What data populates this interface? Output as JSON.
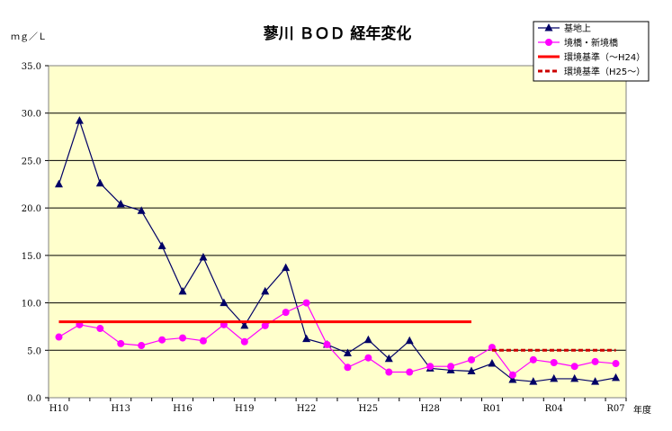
{
  "chart_data": {
    "type": "line",
    "title": "蓼川 ＢＯＤ 経年変化",
    "ylabel": "ｍｇ／Ｌ",
    "xlabel": "年度",
    "ylim": [
      0,
      35
    ],
    "yticks": [
      "0.0",
      "5.0",
      "10.0",
      "15.0",
      "20.0",
      "25.0",
      "30.0",
      "35.0"
    ],
    "xtick_labels": [
      "H10",
      "H13",
      "H16",
      "H19",
      "H22",
      "H25",
      "H28",
      "R01",
      "R04",
      "R07"
    ],
    "categories": [
      "H10",
      "H11",
      "H12",
      "H13",
      "H14",
      "H15",
      "H16",
      "H17",
      "H18",
      "H19",
      "H20",
      "H21",
      "H22",
      "H23",
      "H24",
      "H25",
      "H26",
      "H27",
      "H28",
      "H29",
      "H30",
      "R01",
      "R02",
      "R03",
      "R04",
      "R05",
      "R06",
      "R07"
    ],
    "grid": true,
    "legend_position": "top-right",
    "series": [
      {
        "name": "基地上",
        "color": "#000066",
        "marker": "triangle",
        "values": [
          22.5,
          29.2,
          22.6,
          20.4,
          19.7,
          16.0,
          11.2,
          14.8,
          10.0,
          7.6,
          11.2,
          13.7,
          6.2,
          5.6,
          4.7,
          6.1,
          4.1,
          6.0,
          3.1,
          2.9,
          2.8,
          3.6,
          1.9,
          1.7,
          2.0,
          2.0,
          1.7,
          2.1
        ]
      },
      {
        "name": "境橋・新境橋",
        "color": "#FF00FF",
        "marker": "circle",
        "values": [
          6.4,
          7.7,
          7.3,
          5.7,
          5.5,
          6.1,
          6.3,
          6.0,
          7.7,
          5.9,
          7.6,
          9.0,
          10.0,
          5.6,
          3.2,
          4.2,
          2.7,
          2.7,
          3.3,
          3.3,
          4.0,
          5.3,
          2.4,
          4.0,
          3.7,
          3.3,
          3.8,
          3.6
        ]
      },
      {
        "name": "環境基準（～H24）",
        "color": "#FF0000",
        "style": "solid",
        "value": 8,
        "range": [
          "H10",
          "H30"
        ]
      },
      {
        "name": "環境基準（H25～）",
        "color": "#CC0000",
        "style": "dashed",
        "value": 5,
        "range": [
          "R01",
          "R07"
        ]
      }
    ]
  }
}
